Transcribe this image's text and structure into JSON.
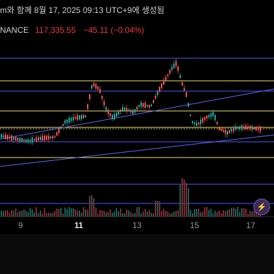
{
  "caption": {
    "text": "m와 함께 8월 17, 2025 09:13 UTC+9에 생성됨"
  },
  "ticker": {
    "symbol": "NANCE",
    "price": "117,335.55",
    "change": "−45.11 (−0.04%)",
    "change_color": "#f23645"
  },
  "xaxis": {
    "ticks": [
      {
        "label": "9",
        "bold": false
      },
      {
        "label": "11",
        "bold": true
      },
      {
        "label": "13",
        "bold": false
      },
      {
        "label": "15",
        "bold": false
      },
      {
        "label": "17",
        "bold": false
      }
    ]
  },
  "toolbar": {
    "bolt_icon": "lightning-icon"
  },
  "colors": {
    "up": "#26a69a",
    "down": "#ef5350",
    "level_blue": "#4a5cff",
    "level_yellow": "#f5e36b",
    "trend_blue": "#5b6cff"
  }
}
